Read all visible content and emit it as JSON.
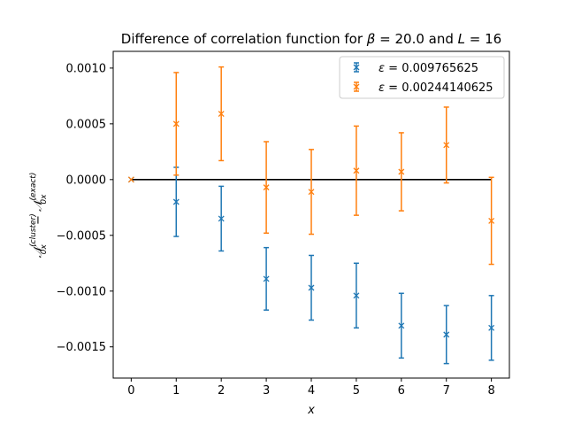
{
  "chart_data": {
    "type": "scatter",
    "title_prefix": "Difference of correlation function for ",
    "title_beta": "β",
    "title_mid": " = 20.0 and ",
    "title_L": "L",
    "title_suffix": " = 16",
    "xlabel": "x",
    "ylabel": {
      "script_n": "𝒩",
      "sub": "0x",
      "sup_cluster": "(cluster)",
      "minus": " − ",
      "sup_exact": "(exact)"
    },
    "x_ticks": [
      "0",
      "1",
      "2",
      "3",
      "4",
      "5",
      "6",
      "7",
      "8"
    ],
    "y_ticks": [
      "0.0010",
      "0.0005",
      "0.0000",
      "−0.0005",
      "−0.0010",
      "−0.0015"
    ],
    "y_tick_values": [
      0.001,
      0.0005,
      0.0,
      -0.0005,
      -0.001,
      -0.0015
    ],
    "xlim": [
      -0.4,
      8.4
    ],
    "ylim": [
      -0.00178,
      0.00115
    ],
    "reference_line": {
      "y": 0.0,
      "x_from": 0,
      "x_to": 8,
      "color": "#000000"
    },
    "legend_position": "upper right",
    "series": [
      {
        "name_symbol": "ε",
        "name_value": " = 0.009765625",
        "color": "#1f77b4",
        "marker": "x",
        "x": [
          0,
          1,
          2,
          3,
          4,
          5,
          6,
          7,
          8
        ],
        "y": [
          0.0,
          -0.0002,
          -0.00035,
          -0.00089,
          -0.00097,
          -0.00104,
          -0.00131,
          -0.00139,
          -0.00133
        ],
        "err": [
          0.0,
          0.00031,
          0.00029,
          0.00028,
          0.00029,
          0.00029,
          0.00029,
          0.00026,
          0.00029
        ]
      },
      {
        "name_symbol": "ε",
        "name_value": " = 0.00244140625",
        "color": "#ff7f0e",
        "marker": "x",
        "x": [
          0,
          1,
          2,
          3,
          4,
          5,
          6,
          7,
          8
        ],
        "y": [
          0.0,
          0.0005,
          0.00059,
          -7e-05,
          -0.00011,
          8e-05,
          7e-05,
          0.00031,
          -0.00037
        ],
        "err": [
          0.0,
          0.00046,
          0.00042,
          0.00041,
          0.00038,
          0.0004,
          0.00035,
          0.00034,
          0.00039
        ]
      }
    ]
  }
}
